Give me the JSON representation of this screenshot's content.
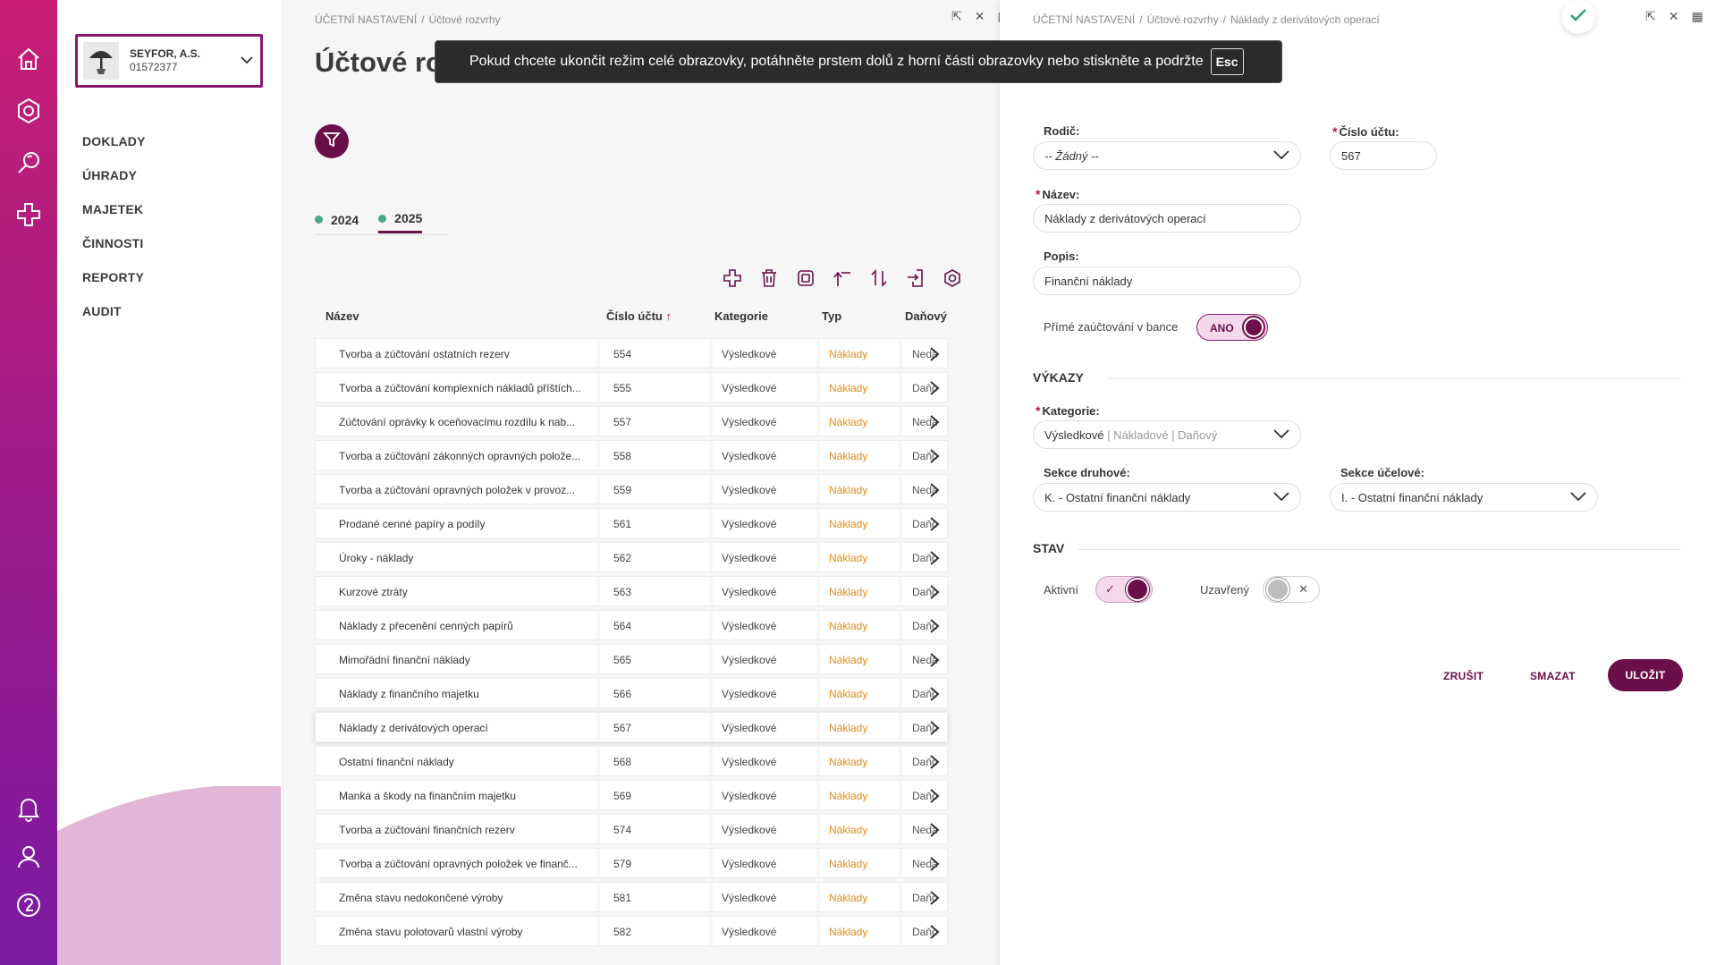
{
  "company": {
    "name": "SEYFOR, A.S.",
    "id": "01572377"
  },
  "nav": [
    "DOKLADY",
    "ÚHRADY",
    "MAJETEK",
    "ČINNOSTI",
    "REPORTY",
    "AUDIT"
  ],
  "list_panel": {
    "breadcrumb": [
      "ÚČETNÍ NASTAVENÍ",
      "Účtové rozvrhy"
    ],
    "title": "Účtové ro",
    "years": [
      {
        "label": "2024",
        "active": false
      },
      {
        "label": "2025",
        "active": true
      }
    ],
    "columns": {
      "name": "Název",
      "number": "Číslo účtu",
      "number_sort": "↑",
      "category": "Kategorie",
      "type": "Typ",
      "tax": "Daňový"
    },
    "rows": [
      {
        "name": "Tvorba a zúčtování ostatních rezerv",
        "number": "554",
        "category": "Výsledkové",
        "type": "Náklady",
        "tax": "Nedaň"
      },
      {
        "name": "Tvorba a zúčtování komplexních nákladů příštích...",
        "number": "555",
        "category": "Výsledkové",
        "type": "Náklady",
        "tax": "Daňový"
      },
      {
        "name": "Zúčtování oprávky k oceňovacímu rozdílu k nab...",
        "number": "557",
        "category": "Výsledkové",
        "type": "Náklady",
        "tax": "Nedaň"
      },
      {
        "name": "Tvorba a zúčtování zákonných opravných polože...",
        "number": "558",
        "category": "Výsledkové",
        "type": "Náklady",
        "tax": "Daňový"
      },
      {
        "name": "Tvorba a zúčtování opravných položek v provoz...",
        "number": "559",
        "category": "Výsledkové",
        "type": "Náklady",
        "tax": "Nedaň"
      },
      {
        "name": "Prodané cenné papíry a podíly",
        "number": "561",
        "category": "Výsledkové",
        "type": "Náklady",
        "tax": "Daňový"
      },
      {
        "name": "Úroky - náklady",
        "number": "562",
        "category": "Výsledkové",
        "type": "Náklady",
        "tax": "Daňový"
      },
      {
        "name": "Kurzové ztráty",
        "number": "563",
        "category": "Výsledkové",
        "type": "Náklady",
        "tax": "Daňový"
      },
      {
        "name": "Náklady z přecenění cenných papírů",
        "number": "564",
        "category": "Výsledkové",
        "type": "Náklady",
        "tax": "Daňový"
      },
      {
        "name": "Mimořádní finanční náklady",
        "number": "565",
        "category": "Výsledkové",
        "type": "Náklady",
        "tax": "Nedaň"
      },
      {
        "name": "Náklady z finančního majetku",
        "number": "566",
        "category": "Výsledkové",
        "type": "Náklady",
        "tax": "Daňový"
      },
      {
        "name": "Náklady z derivátových operací",
        "number": "567",
        "category": "Výsledkové",
        "type": "Náklady",
        "tax": "Daňový"
      },
      {
        "name": "Ostatní finanční náklady",
        "number": "568",
        "category": "Výsledkové",
        "type": "Náklady",
        "tax": "Daňový"
      },
      {
        "name": "Manka a škody na finančním majetku",
        "number": "569",
        "category": "Výsledkové",
        "type": "Náklady",
        "tax": "Daňový"
      },
      {
        "name": "Tvorba a zúčtování finančních rezerv",
        "number": "574",
        "category": "Výsledkové",
        "type": "Náklady",
        "tax": "Nedaň"
      },
      {
        "name": "Tvorba a zúčtování opravných položek ve finanč...",
        "number": "579",
        "category": "Výsledkové",
        "type": "Náklady",
        "tax": "Nedaň"
      },
      {
        "name": "Změna stavu nedokončené výroby",
        "number": "581",
        "category": "Výsledkové",
        "type": "Náklady",
        "tax": "Daňový"
      },
      {
        "name": "Změna stavu polotovarů vlastní výroby",
        "number": "582",
        "category": "Výsledkové",
        "type": "Náklady",
        "tax": "Daňový"
      }
    ],
    "selected_number": "567"
  },
  "detail": {
    "breadcrumb": [
      "ÚČETNÍ NASTAVENÍ",
      "Účtové rozvrhy",
      "Náklady z derivátových operací"
    ],
    "labels": {
      "parent": "Rodič:",
      "account_number": "Číslo účtu:",
      "name": "Název:",
      "description": "Popis:",
      "direct_posting": "Přímé zaúčtování v bance",
      "reports_section": "VÝKAZY",
      "category": "Kategorie:",
      "section_kind": "Sekce druhové:",
      "section_purpose": "Sekce účelové:",
      "state_section": "STAV",
      "active": "Aktivní",
      "closed": "Uzavřený"
    },
    "values": {
      "parent": "-- Žádný --",
      "account_number": "567",
      "name": "Náklady z derivátových operací",
      "description": "Finanční náklady",
      "direct_posting": "ANO",
      "category_main": "Výsledkové",
      "category_rest": " | Nákladové | Daňový",
      "section_kind": "K. - Ostatní finanční náklady",
      "section_purpose": "I. - Ostatní finanční náklady"
    },
    "toggles": {
      "direct_posting": true,
      "active": true,
      "closed": false
    },
    "buttons": {
      "cancel": "ZRUŠIT",
      "delete": "SMAZAT",
      "save": "ULOŽIT"
    }
  },
  "fullscreen_notice": {
    "text": "Pokud chcete ukončit režim celé obrazovky, potáhněte prstem dolů z horní části obrazovky nebo stiskněte a podržte",
    "key": "Esc"
  },
  "colors": {
    "brand": "#6b0f4a",
    "type_text": "#e08a1a",
    "year_dot": "#48a88a",
    "rail_top": "#c81f74",
    "rail_bottom": "#7b1aa3"
  }
}
